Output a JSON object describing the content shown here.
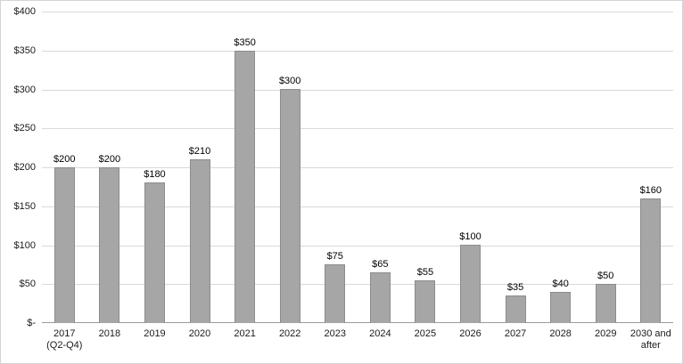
{
  "chart_data": {
    "type": "bar",
    "title": "",
    "xlabel": "",
    "ylabel": "",
    "categories": [
      "2017 (Q2-Q4)",
      "2018",
      "2019",
      "2020",
      "2021",
      "2022",
      "2023",
      "2024",
      "2025",
      "2026",
      "2027",
      "2028",
      "2029",
      "2030 and after"
    ],
    "values": [
      200,
      200,
      180,
      210,
      350,
      300,
      75,
      65,
      55,
      100,
      35,
      40,
      50,
      160
    ],
    "bar_labels": [
      "$200",
      "$200",
      "$180",
      "$210",
      "$350",
      "$300",
      "$75",
      "$65",
      "$55",
      "$100",
      "$35",
      "$40",
      "$50",
      "$160"
    ],
    "ylim": [
      0,
      400
    ],
    "y_tick_values": [
      0,
      50,
      100,
      150,
      200,
      250,
      300,
      350,
      400
    ],
    "y_tick_labels": [
      "$-",
      "$50",
      "$100",
      "$150",
      "$200",
      "$250",
      "$300",
      "$350",
      "$400"
    ],
    "grid": true,
    "legend": "none",
    "colors": {
      "bar_fill": "#a6a6a6",
      "bar_border": "#8c8c8c",
      "gridline": "#d9d9d9",
      "axis_line": "#9b9b9b",
      "text": "#1a1a1a"
    }
  }
}
